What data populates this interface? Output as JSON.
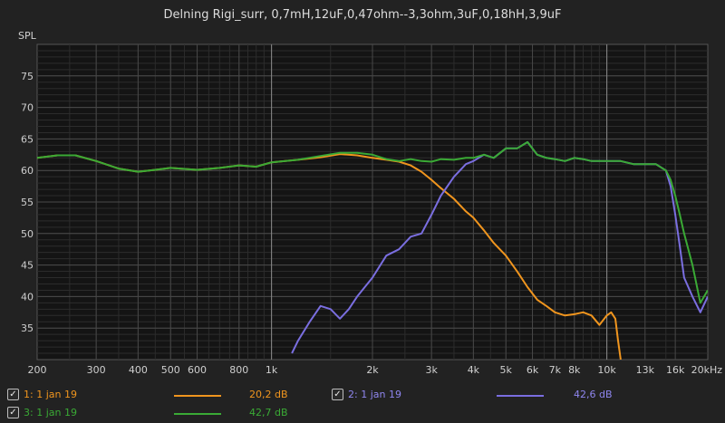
{
  "chart_data": {
    "type": "line",
    "title": "Delning Rigi_surr, 0,7mH,12uF,0,47ohm--3,3ohm,3uF,0,18hH,3,9uF",
    "ylabel": "SPL",
    "xlabel": "",
    "x_scale": "log",
    "xlim": [
      200,
      20000
    ],
    "ylim": [
      30,
      80
    ],
    "y_ticks": [
      35,
      40,
      45,
      50,
      55,
      60,
      65,
      70,
      75
    ],
    "x_ticks": [
      {
        "v": 200,
        "label": "200"
      },
      {
        "v": 300,
        "label": "300"
      },
      {
        "v": 400,
        "label": "400"
      },
      {
        "v": 500,
        "label": "500"
      },
      {
        "v": 600,
        "label": "600"
      },
      {
        "v": 800,
        "label": "800"
      },
      {
        "v": 1000,
        "label": "1k"
      },
      {
        "v": 2000,
        "label": "2k"
      },
      {
        "v": 3000,
        "label": "3k"
      },
      {
        "v": 4000,
        "label": "4k"
      },
      {
        "v": 5000,
        "label": "5k"
      },
      {
        "v": 6000,
        "label": "6k"
      },
      {
        "v": 7000,
        "label": "7k"
      },
      {
        "v": 8000,
        "label": "8k"
      },
      {
        "v": 10000,
        "label": "10k"
      },
      {
        "v": 13000,
        "label": "13k"
      },
      {
        "v": 16000,
        "label": "16k"
      },
      {
        "v": 20000,
        "label": "20kHz"
      }
    ],
    "grid": true,
    "legend_position": "bottom",
    "series": [
      {
        "name": "1: 1 jan 19",
        "color": "#f0951e",
        "value_label": "20,2 dB",
        "x": [
          200,
          230,
          260,
          300,
          350,
          400,
          450,
          500,
          600,
          700,
          800,
          900,
          1000,
          1200,
          1400,
          1600,
          1800,
          2000,
          2200,
          2400,
          2600,
          2800,
          3000,
          3200,
          3500,
          3800,
          4000,
          4300,
          4600,
          5000,
          5400,
          5800,
          6200,
          6600,
          7000,
          7500,
          8000,
          8500,
          9000,
          9500,
          10000,
          10300,
          10600,
          10800,
          11000
        ],
        "y": [
          62,
          62.4,
          62.4,
          61.5,
          60.3,
          59.8,
          60.1,
          60.4,
          60.1,
          60.4,
          60.8,
          60.6,
          61.3,
          61.7,
          62.1,
          62.6,
          62.4,
          62.0,
          61.7,
          61.4,
          60.8,
          59.8,
          58.5,
          57.2,
          55.5,
          53.5,
          52.5,
          50.5,
          48.5,
          46.5,
          44.0,
          41.5,
          39.5,
          38.5,
          37.5,
          37.0,
          37.2,
          37.5,
          37.0,
          35.5,
          37.0,
          37.5,
          36.5,
          33.0,
          30.0
        ]
      },
      {
        "name": "2: 1 jan 19",
        "color": "#7a6ee0",
        "value_label": "42,6 dB",
        "x": [
          1150,
          1200,
          1300,
          1400,
          1500,
          1600,
          1700,
          1800,
          2000,
          2200,
          2400,
          2600,
          2800,
          3000,
          3200,
          3500,
          3800,
          4000,
          4300,
          4600,
          5000,
          5400,
          5800,
          6200,
          6600,
          7000,
          7500,
          8000,
          8500,
          9000,
          10000,
          11000,
          12000,
          13000,
          14000,
          15000,
          15500,
          16000,
          16500,
          17000,
          18000,
          19000,
          20000
        ],
        "y": [
          31,
          33,
          36,
          38.5,
          38.0,
          36.5,
          38.0,
          40.0,
          43.0,
          46.5,
          47.5,
          49.5,
          50.0,
          53.0,
          56.0,
          59.0,
          61.0,
          61.5,
          62.5,
          62.0,
          63.5,
          63.5,
          64.5,
          62.5,
          62.0,
          61.8,
          61.5,
          62.0,
          61.8,
          61.5,
          61.5,
          61.5,
          61.0,
          61.0,
          61.0,
          60.0,
          57.5,
          53.0,
          48.0,
          43.0,
          40.0,
          37.5,
          40.0
        ]
      },
      {
        "name": "3: 1 jan 19",
        "color": "#3aaa35",
        "value_label": "42,7 dB",
        "x": [
          200,
          230,
          260,
          300,
          350,
          400,
          450,
          500,
          600,
          700,
          800,
          900,
          1000,
          1200,
          1400,
          1600,
          1800,
          2000,
          2200,
          2400,
          2600,
          2800,
          3000,
          3200,
          3500,
          3800,
          4000,
          4300,
          4600,
          5000,
          5400,
          5800,
          6200,
          6600,
          7000,
          7500,
          8000,
          8500,
          9000,
          10000,
          11000,
          12000,
          13000,
          14000,
          15000,
          15500,
          16000,
          16500,
          17000,
          18000,
          19000,
          20000
        ],
        "y": [
          62,
          62.4,
          62.4,
          61.5,
          60.3,
          59.8,
          60.1,
          60.4,
          60.1,
          60.4,
          60.8,
          60.6,
          61.3,
          61.7,
          62.3,
          62.8,
          62.8,
          62.5,
          61.8,
          61.5,
          61.8,
          61.5,
          61.4,
          61.8,
          61.7,
          62.0,
          62.0,
          62.5,
          62.0,
          63.5,
          63.5,
          64.5,
          62.5,
          62.0,
          61.8,
          61.5,
          62.0,
          61.8,
          61.5,
          61.5,
          61.5,
          61.0,
          61.0,
          61.0,
          60.0,
          58.5,
          56.0,
          53.0,
          50.0,
          45.0,
          39.0,
          41.0
        ]
      }
    ]
  }
}
